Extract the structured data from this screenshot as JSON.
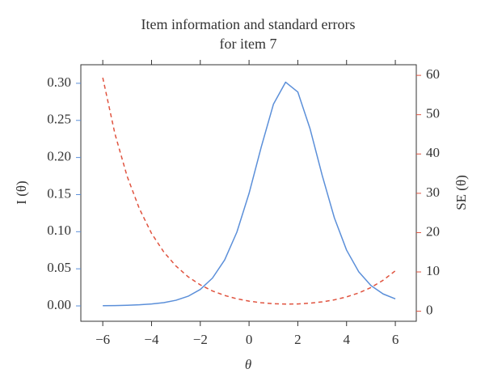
{
  "chart_data": {
    "type": "line",
    "title": [
      "Item information and standard errors",
      "for item 7"
    ],
    "x_label": "θ",
    "y_label": "I (θ)",
    "y2_label": "SE (θ)",
    "x": [
      -6,
      -5.5,
      -5,
      -4.5,
      -4,
      -3.5,
      -3,
      -2.5,
      -2,
      -1.5,
      -1,
      -0.5,
      0,
      0.5,
      1,
      1.5,
      2,
      2.5,
      3,
      3.5,
      4,
      4.5,
      5,
      5.5,
      6
    ],
    "series": [
      {
        "name": "I (θ)",
        "color": "#5b8fd9",
        "linestyle": "solid",
        "values": [
          0.000283,
          0.000491,
          0.000851,
          0.00147,
          0.00255,
          0.00441,
          0.00759,
          0.013,
          0.0222,
          0.0375,
          0.062,
          0.0994,
          0.1516,
          0.2141,
          0.2718,
          0.3015,
          0.2883,
          0.239,
          0.1759,
          0.1186,
          0.0752,
          0.046,
          0.0274,
          0.0161,
          0.00944
        ]
      },
      {
        "name": "SE (θ)",
        "color": "#e0533f",
        "linestyle": "dashed",
        "axis": "y2",
        "values": [
          59.4,
          45.1,
          34.3,
          26.1,
          19.8,
          15.1,
          11.5,
          8.77,
          6.71,
          5.16,
          4.02,
          3.17,
          2.57,
          2.16,
          1.92,
          1.82,
          1.86,
          2.05,
          2.38,
          2.9,
          3.65,
          4.66,
          6.04,
          7.88,
          10.29
        ]
      }
    ],
    "xlim": [
      -6.9,
      6.86
    ],
    "xticks": [
      {
        "value": -6,
        "label": "−6"
      },
      {
        "value": -4,
        "label": "−4"
      },
      {
        "value": -2,
        "label": "−2"
      },
      0,
      2,
      4,
      6
    ],
    "ylim": [
      -0.0207,
      0.325
    ],
    "yticks": [
      {
        "value": 0,
        "label": "0.00"
      },
      {
        "value": 0.05,
        "label": "0.05"
      },
      {
        "value": 0.1,
        "label": "0.10"
      },
      {
        "value": 0.15,
        "label": "0.15"
      },
      {
        "value": 0.2,
        "label": "0.20"
      },
      {
        "value": 0.25,
        "label": "0.25"
      },
      {
        "value": 0.3,
        "label": "0.30"
      }
    ],
    "y2lim": [
      -2.55,
      62.7
    ],
    "y2ticks": [
      0,
      10,
      20,
      30,
      40,
      50,
      60
    ]
  }
}
